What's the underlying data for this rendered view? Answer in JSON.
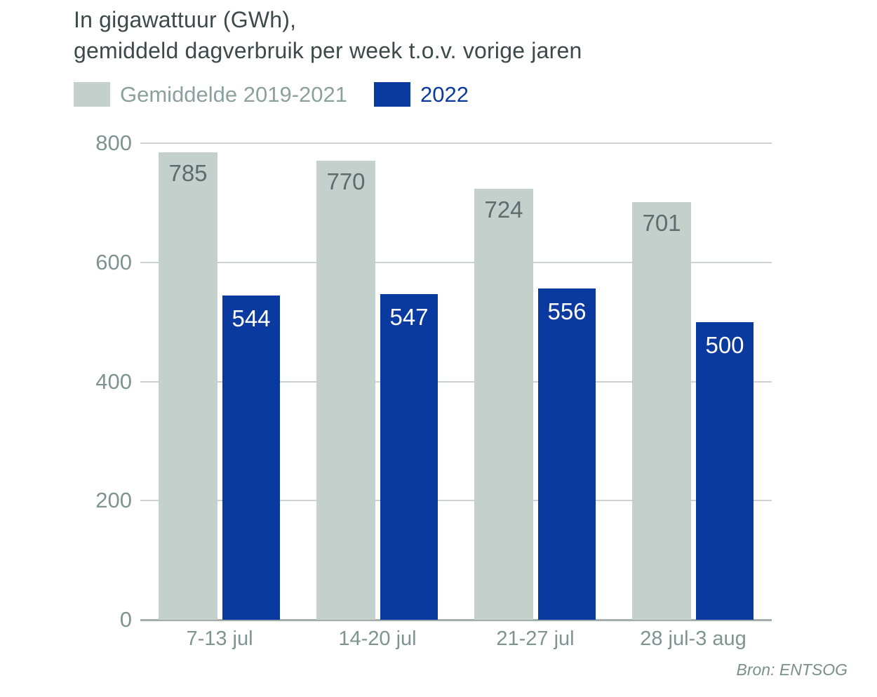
{
  "title": {
    "line1": "In gigawattuur (GWh),",
    "line2": "gemiddeld dagverbruik per week t.o.v. vorige jaren"
  },
  "legend": {
    "items": [
      {
        "label": "Gemiddelde 2019-2021",
        "swatch_color": "#c4d0cb",
        "label_color": "#8ba19e"
      },
      {
        "label": "2022",
        "swatch_color": "#0a3aa0",
        "label_color": "#0a3aa0"
      }
    ]
  },
  "source": "Bron: ENTSOG",
  "chart_data": {
    "type": "bar",
    "title": "In gigawattuur (GWh), gemiddeld dagverbruik per week t.o.v. vorige jaren",
    "categories": [
      "7-13 jul",
      "14-20 jul",
      "21-27 jul",
      "28 jul-3 aug"
    ],
    "series": [
      {
        "name": "Gemiddelde 2019-2021",
        "color": "#c4d0cb",
        "value_label_color": "#5d6c6e",
        "values": [
          785,
          770,
          724,
          701
        ]
      },
      {
        "name": "2022",
        "color": "#0a3aa0",
        "value_label_color": "#ffffff",
        "values": [
          544,
          547,
          556,
          500
        ]
      }
    ],
    "xlabel": "",
    "ylabel": "",
    "ylim": [
      0,
      800
    ],
    "yticks": [
      0,
      200,
      400,
      600,
      800
    ],
    "grid": true,
    "value_labels": "inside-top",
    "legend_position": "top-left",
    "source": "Bron: ENTSOG"
  },
  "colors": {
    "background": "#ffffff",
    "title_text": "#3d4a4c",
    "axis_text": "#7f9492",
    "gridline": "#ccd2d0",
    "axis_line": "#a4afad"
  }
}
